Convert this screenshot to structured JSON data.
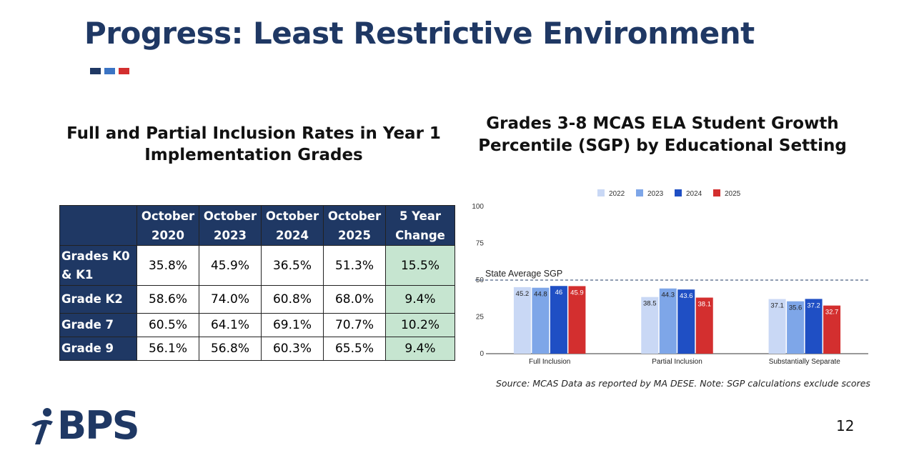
{
  "slide": {
    "title": "Progress: Least Restrictive Environment",
    "page_number": "12",
    "logo_text": "BPS",
    "accent_colors": [
      "#1f3864",
      "#3b74c4",
      "#d32f2f"
    ]
  },
  "table": {
    "title": "Full and Partial Inclusion Rates in Year 1 Implementation Grades",
    "headers": [
      "",
      "October 2020",
      "October 2023",
      "October 2024",
      "October 2025",
      "5 Year Change"
    ],
    "rows": [
      {
        "label": "Grades K0 & K1",
        "values": [
          "35.8%",
          "45.9%",
          "36.5%",
          "51.3%"
        ],
        "change": "15.5%"
      },
      {
        "label": "Grade K2",
        "values": [
          "58.6%",
          "74.0%",
          "60.8%",
          "68.0%"
        ],
        "change": "9.4%"
      },
      {
        "label": "Grade 7",
        "values": [
          "60.5%",
          "64.1%",
          "69.1%",
          "70.7%"
        ],
        "change": "10.2%"
      },
      {
        "label": "Grade 9",
        "values": [
          "56.1%",
          "56.8%",
          "60.3%",
          "65.5%"
        ],
        "change": "9.4%"
      }
    ]
  },
  "chart_data": {
    "type": "bar",
    "title": "Grades 3-8 MCAS ELA Student Growth Percentile (SGP) by Educational Setting",
    "categories": [
      "Full Inclusion",
      "Partial Inclusion",
      "Substantially Separate"
    ],
    "series": [
      {
        "name": "2022",
        "color": "#c9d8f5",
        "values": [
          45.2,
          38.5,
          37.1
        ]
      },
      {
        "name": "2023",
        "color": "#7ea6e8",
        "values": [
          44.8,
          44.3,
          35.6
        ]
      },
      {
        "name": "2024",
        "color": "#1f4fc4",
        "values": [
          46,
          43.6,
          37.2
        ]
      },
      {
        "name": "2025",
        "color": "#d32f2f",
        "values": [
          45.9,
          38.1,
          32.7
        ]
      }
    ],
    "yticks": [
      0,
      25,
      50,
      75,
      100
    ],
    "ylim": [
      0,
      100
    ],
    "reference_line": {
      "value": 50,
      "label": "State Average SGP"
    },
    "legend_position": "top-center",
    "source": "Source: MCAS Data as reported by MA DESE. Note: SGP calculations exclude scores from MCAS ALT assessments"
  }
}
